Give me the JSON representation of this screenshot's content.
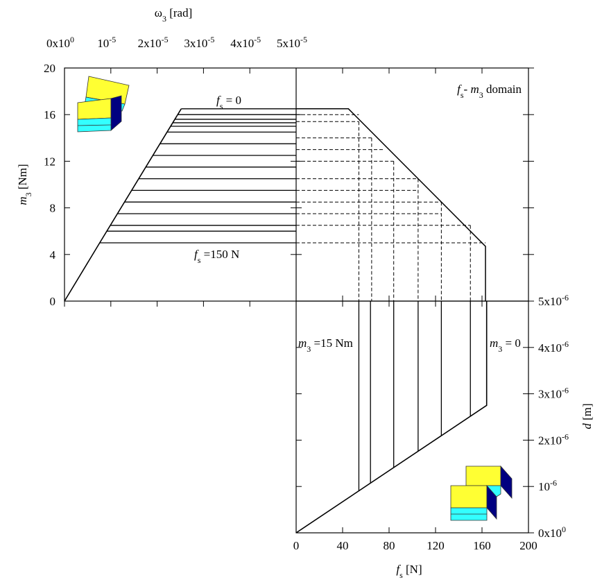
{
  "chart_data": [
    {
      "type": "levels",
      "xlabel": {
        "parts": [
          "ω",
          "3",
          " [rad]"
        ]
      },
      "ylabel": {
        "parts": [
          "m",
          "3",
          " [Nm]"
        ]
      },
      "xlim": [
        0,
        5e-05
      ],
      "xticks": [
        {
          "value": 0,
          "label": "0x10",
          "sup": "0"
        },
        {
          "value": 1e-05,
          "label": "10",
          "sup": "-5"
        },
        {
          "value": 2e-05,
          "label": "2x10",
          "sup": "-5"
        },
        {
          "value": 3e-05,
          "label": "3x10",
          "sup": "-5"
        },
        {
          "value": 4e-05,
          "label": "4x10",
          "sup": "-5"
        },
        {
          "value": 5e-05,
          "label": "5x10",
          "sup": "-5"
        }
      ],
      "ylim": [
        0,
        20
      ],
      "yticks": [
        0,
        4,
        8,
        12,
        16,
        20
      ],
      "envelope": {
        "x": [
          0,
          7.6e-06,
          2.52e-05
        ],
        "y": [
          0,
          5,
          16.5
        ]
      },
      "lines": {
        "y": [
          16.5,
          16,
          15.6,
          15.3,
          15,
          14.5,
          13.5,
          12.5,
          11.5,
          10.5,
          9.5,
          8.5,
          7.5,
          6.5,
          6,
          5
        ],
        "x_start": [
          2.52e-05,
          2.44e-05,
          2.38e-05,
          2.34e-05,
          2.29e-05,
          2.21e-05,
          2.06e-05,
          1.91e-05,
          1.76e-05,
          1.6e-05,
          1.45e-05,
          1.3e-05,
          1.15e-05,
          9.9e-06,
          9.2e-06,
          7.6e-06
        ]
      },
      "annotations": [
        {
          "parts": [
            "f",
            "s",
            " = 0"
          ]
        },
        {
          "parts": [
            "f",
            "s",
            " =150 N"
          ]
        }
      ]
    },
    {
      "type": "domain",
      "title": {
        "parts": [
          "f",
          "s",
          "- ",
          "m",
          "3",
          " domain"
        ]
      },
      "xlim": [
        0,
        200
      ],
      "ylim": [
        0,
        20
      ],
      "boundary": {
        "x": [
          0,
          45,
          163,
          163
        ],
        "y": [
          16.5,
          16.5,
          4.7,
          0
        ]
      },
      "dashed_h": {
        "y": [
          16,
          15.4,
          14,
          13,
          12,
          10.5,
          9.5,
          8.5,
          7.5,
          6.5,
          5
        ],
        "x_end": [
          54,
          54,
          65,
          75,
          84,
          105,
          105,
          125,
          125,
          150,
          163
        ]
      },
      "dashed_v": {
        "x": [
          54,
          65,
          84,
          105,
          125,
          150
        ],
        "y_top": [
          15.4,
          14,
          12,
          10.5,
          8.5,
          6.5
        ]
      }
    },
    {
      "type": "displacement",
      "xlabel": {
        "parts": [
          "f",
          "s",
          " [N]"
        ]
      },
      "ylabel": {
        "parts": [
          "d",
          " [m]"
        ]
      },
      "xlim": [
        0,
        200
      ],
      "xticks": [
        0,
        40,
        80,
        120,
        160,
        200
      ],
      "ylim": [
        0,
        5e-06
      ],
      "yticks": [
        {
          "value": 0,
          "label": "0x10",
          "sup": "0"
        },
        {
          "value": 1e-06,
          "label": "10",
          "sup": "-6"
        },
        {
          "value": 2e-06,
          "label": "2x10",
          "sup": "-6"
        },
        {
          "value": 3e-06,
          "label": "3x10",
          "sup": "-6"
        },
        {
          "value": 4e-06,
          "label": "4x10",
          "sup": "-6"
        },
        {
          "value": 5e-06,
          "label": "5x10",
          "sup": "-6"
        }
      ],
      "envelope": {
        "x": [
          0,
          164,
          164
        ],
        "y": [
          0,
          2.75e-06,
          5e-06
        ]
      },
      "lines": {
        "x": [
          54,
          64,
          84,
          105,
          125,
          150
        ],
        "y_base": [
          9.1e-07,
          1.07e-06,
          1.41e-06,
          1.76e-06,
          2.1e-06,
          2.52e-06
        ]
      },
      "annotations": [
        {
          "parts": [
            "m",
            "3",
            " =15 Nm"
          ]
        },
        {
          "parts": [
            "m",
            "3",
            " = 0"
          ]
        }
      ]
    }
  ]
}
